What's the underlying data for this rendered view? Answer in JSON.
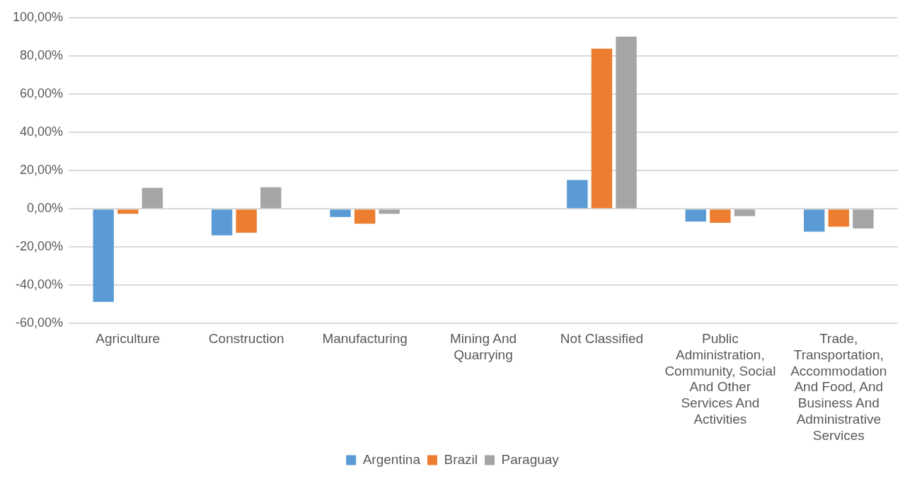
{
  "chart_data": {
    "type": "bar",
    "categories": [
      "Agriculture",
      "Construction",
      "Manufacturing",
      "Mining And Quarrying",
      "Not Classified",
      "Public Administration, Community, Social And Other Services And Activities",
      "Trade, Transportation, Accommodation And Food, And Business And Administrative Services"
    ],
    "series": [
      {
        "name": "Argentina",
        "color": "#5b9bd5",
        "values": [
          -48.7,
          -13.9,
          -4.3,
          0,
          15.1,
          -6.7,
          -11.9
        ]
      },
      {
        "name": "Brazil",
        "color": "#ed7d31",
        "values": [
          -2.6,
          -12.5,
          -7.8,
          0,
          83.8,
          -7.3,
          -9.3
        ]
      },
      {
        "name": "Paraguay",
        "color": "#a5a5a5",
        "values": [
          11.0,
          11.3,
          -2.6,
          0,
          90.1,
          -3.8,
          -10.3
        ]
      }
    ],
    "ylim": [
      -60,
      100
    ],
    "yticks": [
      {
        "value": -60,
        "label": "-60,00%"
      },
      {
        "value": -40,
        "label": "-40,00%"
      },
      {
        "value": -20,
        "label": "-20,00%"
      },
      {
        "value": 0,
        "label": "0,00%"
      },
      {
        "value": 20,
        "label": "20,00%"
      },
      {
        "value": 40,
        "label": "40,00%"
      },
      {
        "value": 60,
        "label": "60,00%"
      },
      {
        "value": 80,
        "label": "80,00%"
      },
      {
        "value": 100,
        "label": "100,00%"
      }
    ],
    "grid": "y",
    "legend": "bottom"
  }
}
